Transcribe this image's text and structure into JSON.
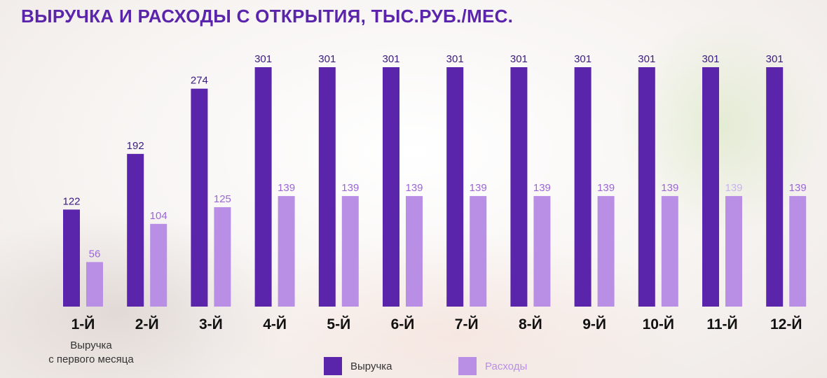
{
  "chart_data": {
    "type": "bar",
    "title": "ВЫРУЧКА И РАСХОДЫ С ОТКРЫТИЯ, ТЫС.РУБ./МЕС.",
    "categories": [
      "1-Й",
      "2-Й",
      "3-Й",
      "4-Й",
      "5-Й",
      "6-Й",
      "7-Й",
      "8-Й",
      "9-Й",
      "10-Й",
      "11-Й",
      "12-Й"
    ],
    "series": [
      {
        "name": "Выручка",
        "color": "#5a25aa",
        "values": [
          122,
          192,
          274,
          301,
          301,
          301,
          301,
          301,
          301,
          301,
          301,
          301
        ]
      },
      {
        "name": "Расходы",
        "color": "#b98fe6",
        "values": [
          56,
          104,
          125,
          139,
          139,
          139,
          139,
          139,
          139,
          139,
          139,
          139
        ]
      }
    ],
    "ylim": [
      0,
      301
    ],
    "grid": false,
    "legend_position": "bottom-center"
  },
  "note": {
    "line1": "Выручка",
    "line2": "с первого месяца"
  }
}
